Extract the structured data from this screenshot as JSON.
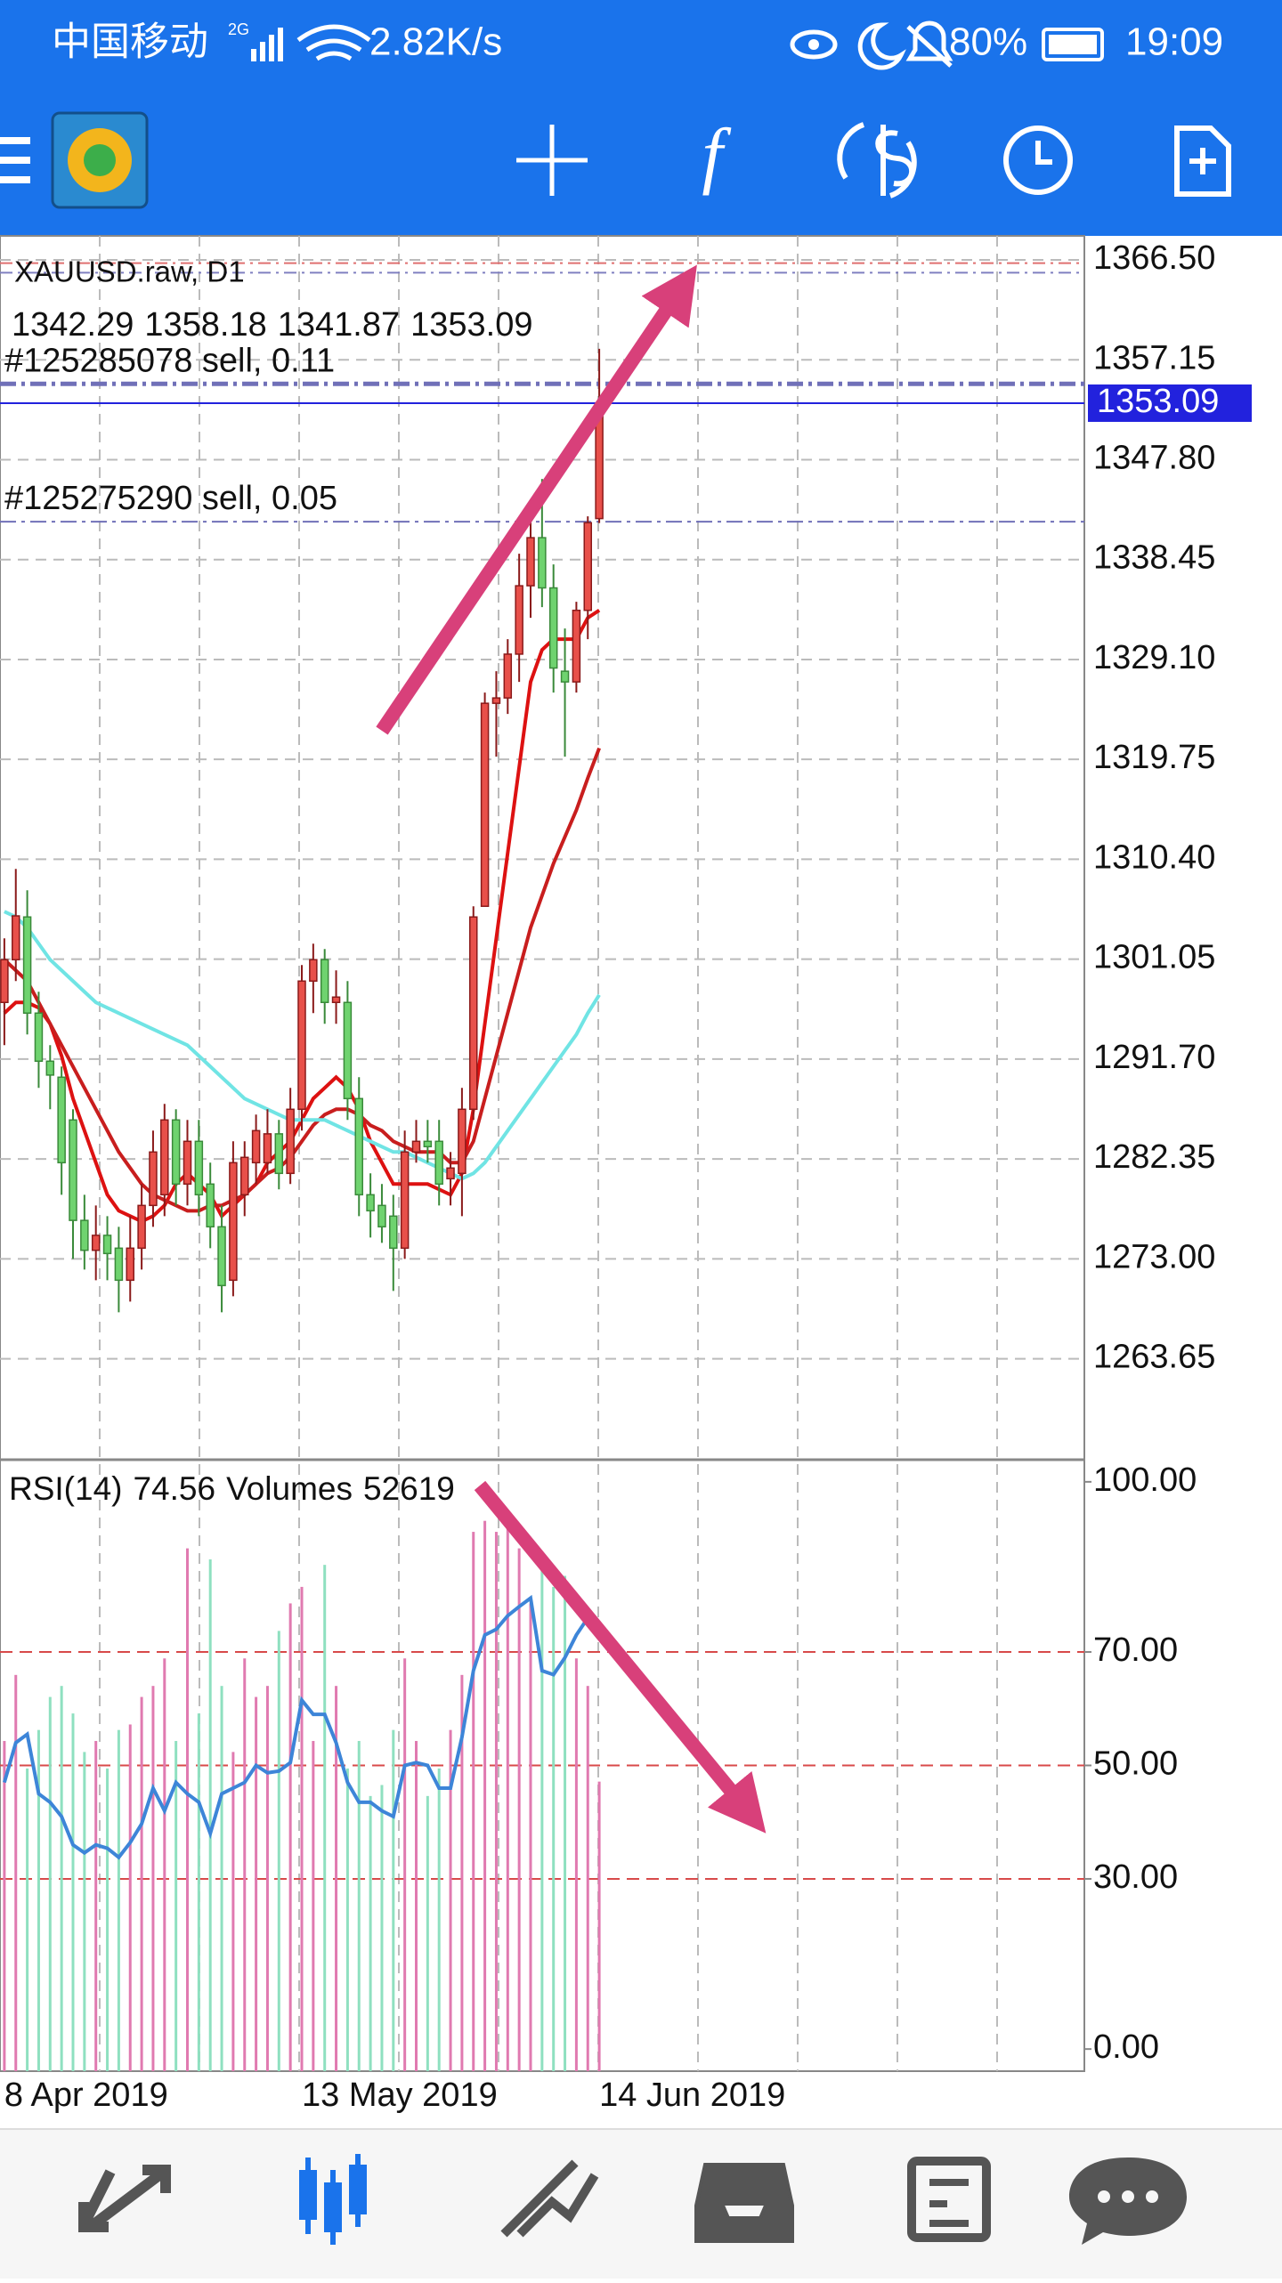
{
  "status_bar": {
    "carrier": "中国移动",
    "network": "2G",
    "speed": "2.82K/s",
    "battery": "80%",
    "time": "19:09"
  },
  "chart": {
    "type": "candlestick",
    "symbol": "XAUUSD.raw, D1",
    "categories": [
      "8 Apr 2019",
      null,
      null,
      null,
      null,
      null,
      null,
      null,
      null,
      null,
      null,
      null,
      null,
      null,
      null,
      null,
      null,
      null,
      null,
      null,
      null,
      null,
      null,
      null,
      null,
      null,
      "13 May 2019",
      null,
      null,
      null,
      null,
      null,
      null,
      null,
      null,
      null,
      null,
      null,
      null,
      null,
      null,
      null,
      null,
      null,
      null,
      null,
      null,
      null,
      null,
      null,
      null,
      null,
      "14 Jun 2019"
    ],
    "ohlc": [
      [
        1297,
        1303,
        1293,
        1301
      ],
      [
        1301,
        1309.5,
        1299,
        1305.1
      ],
      [
        1305,
        1307.5,
        1294,
        1296
      ],
      [
        1296,
        1298,
        1289,
        1291.5
      ],
      [
        1291.5,
        1293,
        1287,
        1290.2
      ],
      [
        1290,
        1291,
        1279,
        1282
      ],
      [
        1286,
        1287,
        1273,
        1276.6
      ],
      [
        1276.6,
        1279,
        1272,
        1273.8
      ],
      [
        1273.8,
        1278,
        1271,
        1275.2
      ],
      [
        1275.2,
        1277,
        1271,
        1273.5
      ],
      [
        1274,
        1276,
        1268,
        1271
      ],
      [
        1271,
        1277,
        1269,
        1274
      ],
      [
        1274,
        1280,
        1272,
        1278
      ],
      [
        1278,
        1285,
        1276,
        1283
      ],
      [
        1279,
        1287.5,
        1277,
        1286
      ],
      [
        1286,
        1287,
        1278,
        1280
      ],
      [
        1280,
        1286,
        1278,
        1284
      ],
      [
        1284,
        1286,
        1277,
        1279
      ],
      [
        1280,
        1282,
        1274,
        1276
      ],
      [
        1276,
        1278,
        1268,
        1270.5
      ],
      [
        1271,
        1284,
        1269.5,
        1282
      ],
      [
        1279,
        1284,
        1277,
        1282.5
      ],
      [
        1282,
        1286.5,
        1280,
        1285
      ],
      [
        1282,
        1287,
        1281,
        1284.7
      ],
      [
        1284.7,
        1286,
        1279.5,
        1281
      ],
      [
        1281,
        1289,
        1280,
        1287
      ],
      [
        1287,
        1300.5,
        1285,
        1299
      ],
      [
        1299,
        1302.5,
        1296,
        1301
      ],
      [
        1301,
        1302,
        1295,
        1297
      ],
      [
        1297,
        1300,
        1295,
        1297.5
      ],
      [
        1297,
        1299,
        1286,
        1288
      ],
      [
        1288,
        1290,
        1277,
        1279
      ],
      [
        1279,
        1281,
        1275,
        1277.5
      ],
      [
        1278,
        1280,
        1274.5,
        1276
      ],
      [
        1277,
        1279,
        1270,
        1274
      ],
      [
        1274,
        1285,
        1273,
        1283
      ],
      [
        1283,
        1286,
        1282,
        1284
      ],
      [
        1284,
        1286,
        1282,
        1283.5
      ],
      [
        1284,
        1286,
        1278,
        1280
      ],
      [
        1280.5,
        1283,
        1278,
        1281.5
      ],
      [
        1281,
        1289,
        1277,
        1287
      ],
      [
        1287,
        1306,
        1286,
        1305
      ],
      [
        1306,
        1326,
        1306,
        1325
      ],
      [
        1325,
        1328,
        1320,
        1325.5
      ],
      [
        1325.5,
        1331,
        1324,
        1329.6
      ],
      [
        1329.6,
        1339,
        1327,
        1336
      ],
      [
        1336,
        1342.5,
        1333,
        1340.5
      ],
      [
        1340.5,
        1346,
        1334,
        1335.8
      ],
      [
        1335.8,
        1338,
        1326,
        1328.3
      ],
      [
        1328,
        1332,
        1320,
        1327
      ],
      [
        1327,
        1334.5,
        1326,
        1333.7
      ],
      [
        1333.7,
        1342.5,
        1331,
        1341.9
      ],
      [
        1342.29,
        1358.18,
        1341.87,
        1353.09
      ]
    ],
    "ylim": [
      1254.2,
      1368.75
    ],
    "yticks": [
      {
        "value": 1366.5,
        "label": "1366.50"
      },
      1357.15,
      {
        "value": 1347.8,
        "label": "1347.80"
      },
      1338.45,
      {
        "value": 1329.1,
        "label": "1329.10"
      },
      1319.75,
      {
        "value": 1310.4,
        "label": "1310.40"
      },
      1301.05,
      {
        "value": 1291.7,
        "label": "1291.70"
      },
      1282.35,
      {
        "value": 1273,
        "label": "1273.00"
      },
      1263.65
    ],
    "grid": true,
    "bull_color": "#e8504a",
    "bear_color": "#6fd36f",
    "current_price_color": "#2222dd",
    "orders": [
      {
        "label": "#125285078 sell, 0.11",
        "price": 1354.9
      },
      {
        "label": "#125275290 sell, 0.05",
        "price": 1342.0
      }
    ],
    "stop_lines": [
      {
        "price": 1366.2,
        "color": "#e07070"
      },
      {
        "price": 1365.3,
        "color": "#8080c0"
      }
    ],
    "ma": [
      {
        "color": "#dd1111",
        "values": [
          1296,
          1297,
          1297,
          1296.5,
          1295,
          1292,
          1288,
          1285,
          1282,
          1279,
          1277.5,
          1277,
          1276.5,
          1277,
          1278,
          1280,
          1281,
          1280,
          1279,
          1277,
          1278,
          1279,
          1280,
          1282,
          1283,
          1284,
          1286,
          1288,
          1289,
          1290,
          1289,
          1287,
          1284,
          1282,
          1280,
          1280,
          1280,
          1280,
          1279.5,
          1279,
          1281,
          1287,
          1295,
          1303,
          1311,
          1319,
          1327,
          1330,
          1331,
          1331,
          1331,
          1333,
          1333.7
        ]
      },
      {
        "color": "#c81e1e",
        "values": [
          1301,
          1300,
          1299,
          1297,
          1295,
          1293,
          1291,
          1289,
          1287,
          1285,
          1283,
          1281.5,
          1280,
          1279,
          1278.5,
          1278,
          1277.5,
          1277.5,
          1278,
          1278,
          1278.5,
          1279,
          1280,
          1281,
          1281.5,
          1282.5,
          1284,
          1285.5,
          1286.5,
          1287,
          1287,
          1286.5,
          1285.5,
          1285,
          1284,
          1283.5,
          1283,
          1283,
          1283,
          1282,
          1282,
          1284,
          1288,
          1292,
          1296,
          1300,
          1304,
          1307,
          1310,
          1312.5,
          1315,
          1318,
          1320.8
        ]
      },
      {
        "color": "#70e4e4",
        "values": [
          1305.5,
          1305,
          1304,
          1302.5,
          1301,
          1300,
          1299,
          1298,
          1297,
          1296.5,
          1296,
          1295.5,
          1295,
          1294.5,
          1294,
          1293.5,
          1293,
          1292,
          1291,
          1290,
          1289,
          1288,
          1287.5,
          1287,
          1286.5,
          1286,
          1286,
          1286,
          1286,
          1285.5,
          1285,
          1284.5,
          1284,
          1283.5,
          1283,
          1283,
          1282.5,
          1282,
          1281.5,
          1281,
          1280.5,
          1281,
          1282,
          1283.5,
          1285,
          1286.5,
          1288,
          1289.5,
          1291,
          1292.5,
          1294,
          1296,
          1297.7
        ]
      }
    ],
    "rsi": {
      "label": "RSI(14)",
      "volumes_label": "Volumes",
      "color": "#3d85d8",
      "level_color": "#d84a4a",
      "ylim": [
        -3.9,
        103.9
      ],
      "yticks": [
        {
          "value": 100,
          "label": "100.00"
        },
        {
          "value": 70,
          "label": "70.00"
        },
        {
          "value": 50,
          "label": "50.00"
        },
        {
          "value": 30,
          "label": "30.00"
        },
        {
          "value": 0,
          "label": "0.00"
        }
      ],
      "levels": [
        70,
        50,
        30
      ],
      "values": [
        47,
        54,
        55.5,
        45,
        43.5,
        41,
        36,
        34.6,
        36,
        35.4,
        33.8,
        36.4,
        39.7,
        46,
        42,
        47,
        45,
        43.5,
        38,
        45,
        46,
        47,
        50,
        48.7,
        49,
        50.5,
        61.5,
        59,
        59,
        54,
        47,
        43.5,
        43.5,
        42,
        41,
        50,
        50.5,
        50,
        46,
        46,
        55,
        66.7,
        73,
        74,
        76.4,
        78,
        79.5,
        66.7,
        66,
        69,
        73,
        76,
        74.56
      ],
      "volumes": [
        60000,
        72000,
        55000,
        62000,
        68000,
        70000,
        65000,
        58000,
        60000,
        55000,
        62000,
        63000,
        68000,
        70000,
        75000,
        60000,
        95000,
        65000,
        93000,
        70000,
        58000,
        75000,
        68000,
        70000,
        80000,
        85000,
        88000,
        60000,
        92000,
        70000,
        55000,
        60000,
        50000,
        52000,
        62000,
        75000,
        60000,
        50000,
        55000,
        62000,
        72000,
        98000,
        100000,
        98000,
        100000,
        95000,
        85000,
        92000,
        88000,
        90000,
        75000,
        70000,
        52619
      ]
    }
  }
}
